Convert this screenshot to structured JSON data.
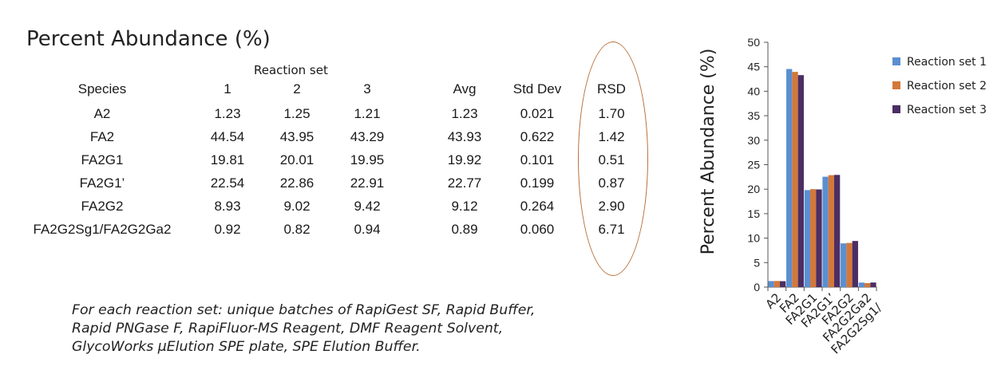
{
  "table": {
    "title": "Percent Abundance (%)",
    "group_header": "Reaction set",
    "columns": [
      "Species",
      "1",
      "2",
      "3",
      "Avg",
      "Std Dev",
      "RSD"
    ],
    "rows": [
      [
        "A2",
        "1.23",
        "1.25",
        "1.21",
        "1.23",
        "0.021",
        "1.70"
      ],
      [
        "FA2",
        "44.54",
        "43.95",
        "43.29",
        "43.93",
        "0.622",
        "1.42"
      ],
      [
        "FA2G1",
        "19.81",
        "20.01",
        "19.95",
        "19.92",
        "0.101",
        "0.51"
      ],
      [
        "FA2G1’",
        "22.54",
        "22.86",
        "22.91",
        "22.77",
        "0.199",
        "0.87"
      ],
      [
        "FA2G2",
        "8.93",
        "9.02",
        "9.42",
        "9.12",
        "0.264",
        "2.90"
      ],
      [
        "FA2G2Sg1/FA2G2Ga2",
        "0.92",
        "0.82",
        "0.94",
        "0.89",
        "0.060",
        "6.71"
      ]
    ]
  },
  "note": {
    "line1": "For each reaction set: unique batches of RapiGest SF, Rapid Buffer,",
    "line2": "Rapid PNGase F, RapiFluor-MS Reagent, DMF Reagent Solvent,",
    "line3": "GlycoWorks μElution SPE plate, SPE Elution Buffer."
  },
  "colors": {
    "series1": "#5b8fd0",
    "series2": "#d4783a",
    "series3": "#4b2e63",
    "oval": "#b8703a"
  },
  "chart_data": {
    "type": "bar",
    "ylabel": "Percent Abundance (%)",
    "xlabel": "",
    "ylim": [
      0,
      50
    ],
    "yticks": [
      0,
      5,
      10,
      15,
      20,
      25,
      30,
      35,
      40,
      45,
      50
    ],
    "categories": [
      "A2",
      "FA2",
      "FA2G1",
      "FA2G1’",
      "FA2G2",
      "FA2G2Sg1/\nFA2G2Ga2"
    ],
    "series": [
      {
        "name": "Reaction set 1",
        "values": [
          1.23,
          44.54,
          19.81,
          22.54,
          8.93,
          0.92
        ]
      },
      {
        "name": "Reaction set 2",
        "values": [
          1.25,
          43.95,
          20.01,
          22.86,
          9.02,
          0.82
        ]
      },
      {
        "name": "Reaction set 3",
        "values": [
          1.21,
          43.29,
          19.95,
          22.91,
          9.42,
          0.94
        ]
      }
    ],
    "legend_position": "right",
    "grid": false
  }
}
